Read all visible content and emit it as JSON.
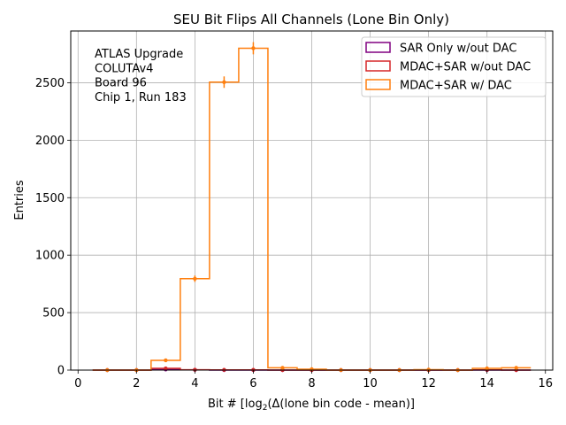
{
  "chart_data": {
    "type": "histogram",
    "title": "SEU Bit Flips All Channels (Lone Bin Only)",
    "xlabel": "Bit # [log2(Δ(lone bin code - mean)]",
    "ylabel": "Entries",
    "xlim": [
      -0.25,
      16.25
    ],
    "ylim": [
      0,
      2950
    ],
    "xticks": [
      0,
      2,
      4,
      6,
      8,
      10,
      12,
      14,
      16
    ],
    "yticks": [
      0,
      500,
      1000,
      1500,
      2000,
      2500
    ],
    "grid": true,
    "legend_position": "top-right",
    "annotation_lines": [
      "ATLAS Upgrade",
      "COLUTAv4",
      " Board 96",
      "Chip 1, Run 183"
    ],
    "bins": [
      1,
      2,
      3,
      4,
      5,
      6,
      7,
      8,
      9,
      10,
      11,
      12,
      13,
      14,
      15
    ],
    "series": [
      {
        "name": "SAR Only w/out DAC",
        "color": "#800080",
        "values": [
          0,
          0,
          5,
          2,
          0,
          0,
          0,
          0,
          0,
          0,
          0,
          0,
          0,
          0,
          0
        ],
        "errors": [
          0,
          0,
          2,
          1,
          0,
          0,
          0,
          0,
          0,
          0,
          0,
          0,
          0,
          0,
          0
        ]
      },
      {
        "name": "MDAC+SAR w/out DAC",
        "color": "#d62728",
        "values": [
          0,
          0,
          15,
          3,
          2,
          2,
          0,
          0,
          0,
          0,
          0,
          0,
          0,
          2,
          0
        ],
        "errors": [
          0,
          0,
          4,
          2,
          1,
          1,
          0,
          0,
          0,
          0,
          0,
          0,
          0,
          1,
          0
        ]
      },
      {
        "name": "MDAC+SAR w/ DAC",
        "color": "#ff7f0e",
        "values": [
          0,
          0,
          85,
          795,
          2505,
          2800,
          20,
          8,
          0,
          0,
          0,
          4,
          0,
          15,
          20
        ],
        "errors": [
          0,
          0,
          9,
          28,
          50,
          53,
          4.5,
          3,
          0,
          0,
          0,
          2,
          0,
          4,
          4.5
        ]
      }
    ]
  }
}
